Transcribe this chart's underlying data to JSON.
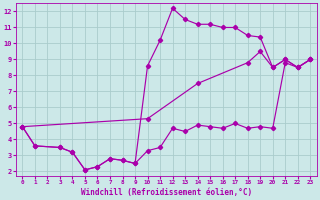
{
  "bg_color": "#cce8e8",
  "grid_color": "#aacccc",
  "line_color": "#aa00aa",
  "xlim": [
    -0.5,
    23.5
  ],
  "ylim": [
    1.7,
    12.5
  ],
  "xticks": [
    0,
    1,
    2,
    3,
    4,
    5,
    6,
    7,
    8,
    9,
    10,
    11,
    12,
    13,
    14,
    15,
    16,
    17,
    18,
    19,
    20,
    21,
    22,
    23
  ],
  "yticks": [
    2,
    3,
    4,
    5,
    6,
    7,
    8,
    9,
    10,
    11,
    12
  ],
  "xlabel": "Windchill (Refroidissement éolien,°C)",
  "line1_x": [
    0,
    1,
    3,
    4,
    5,
    6,
    7,
    8,
    9,
    10,
    11,
    12,
    13,
    14,
    15,
    16,
    17,
    18,
    19,
    20,
    21,
    22,
    23
  ],
  "line1_y": [
    4.8,
    3.6,
    3.5,
    3.2,
    2.1,
    2.3,
    2.8,
    2.7,
    2.5,
    3.3,
    3.5,
    4.7,
    4.5,
    4.9,
    4.8,
    4.7,
    5.0,
    4.7,
    4.8,
    4.7,
    8.8,
    8.5,
    9.0
  ],
  "line2_x": [
    0,
    1,
    3,
    4,
    5,
    6,
    7,
    8,
    9,
    10,
    11,
    12,
    13,
    14,
    15,
    16,
    17,
    18,
    19,
    20,
    21,
    22,
    23
  ],
  "line2_y": [
    4.8,
    3.6,
    3.5,
    3.2,
    2.1,
    2.3,
    2.8,
    2.7,
    2.5,
    8.6,
    10.2,
    12.2,
    11.5,
    11.2,
    11.2,
    11.0,
    11.0,
    10.5,
    10.4,
    8.5,
    9.0,
    8.5,
    9.0
  ],
  "line3_x": [
    0,
    10,
    14,
    18,
    19,
    20,
    21,
    22,
    23
  ],
  "line3_y": [
    4.8,
    5.3,
    7.5,
    8.8,
    9.5,
    8.5,
    9.0,
    8.5,
    9.0
  ]
}
